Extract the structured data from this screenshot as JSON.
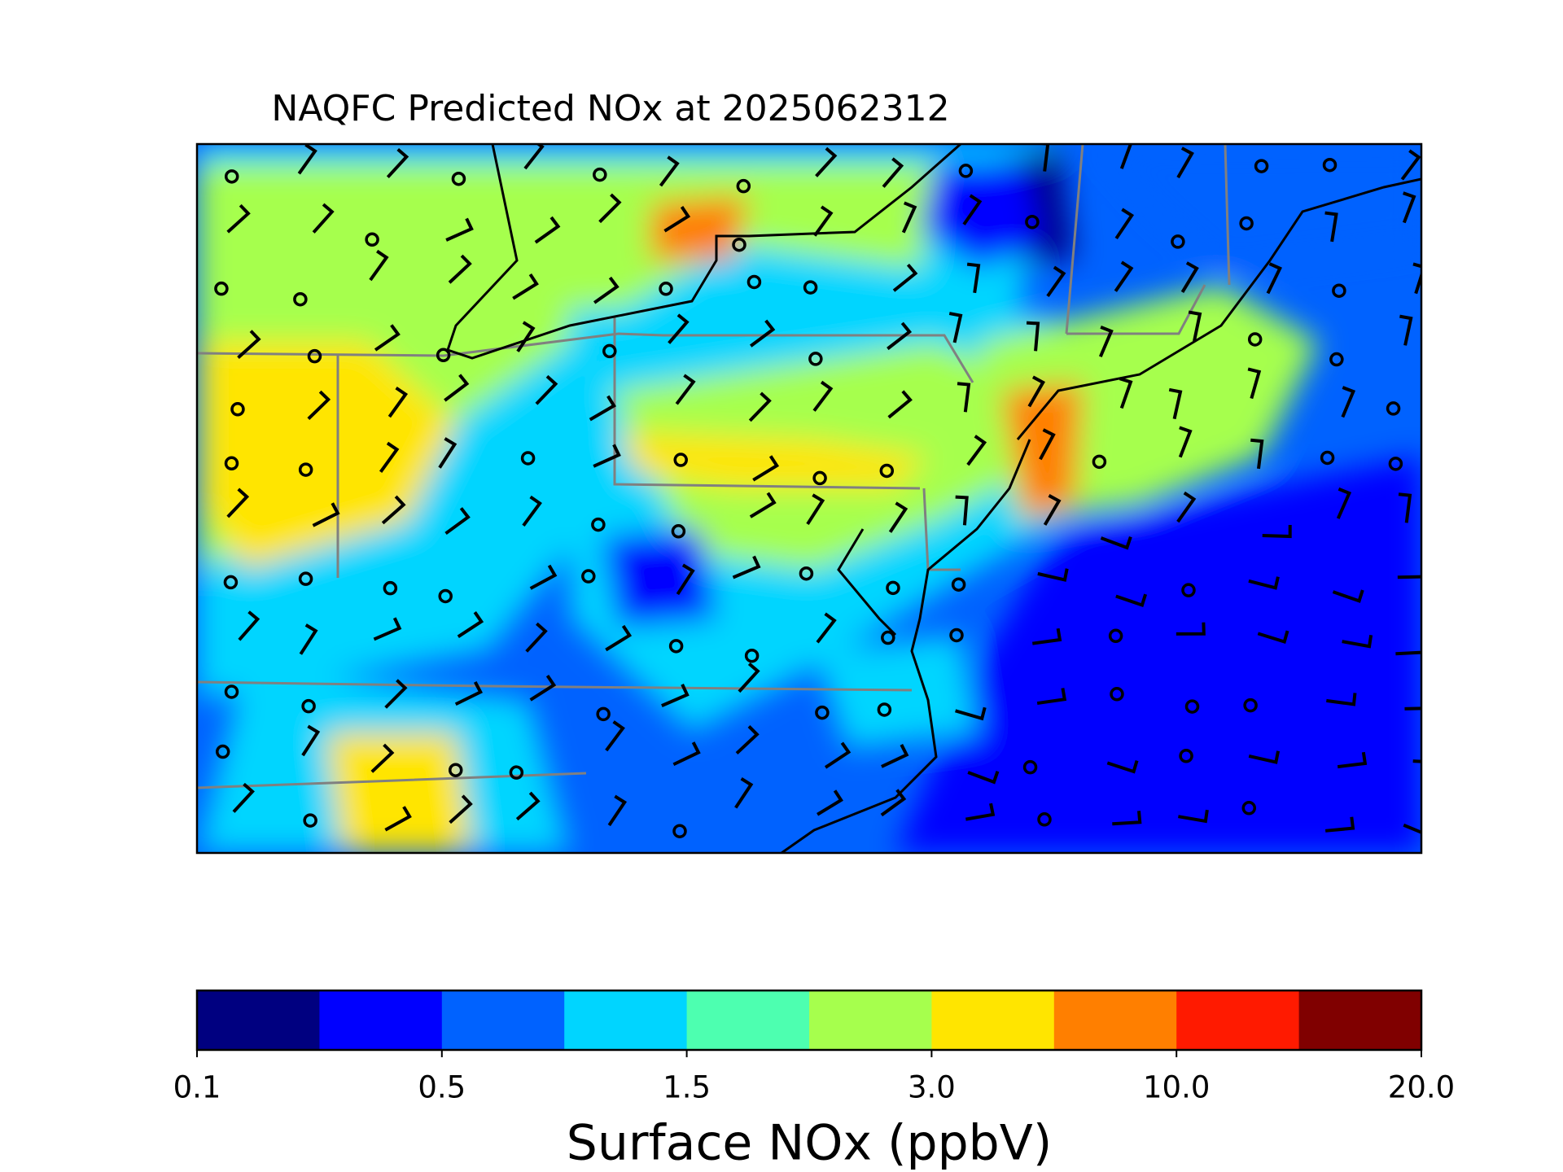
{
  "chart_data": {
    "type": "map",
    "title": "NAQFC Predicted NOx at 2025062312",
    "colorbar": {
      "label": "Surface NOx (ppbV)",
      "colors": [
        "#000080",
        "#0000ff",
        "#0062ff",
        "#00d5ff",
        "#4dffb0",
        "#a6ff4d",
        "#ffe500",
        "#ff7f00",
        "#ff1a00",
        "#800000"
      ],
      "ticks": [
        0.1,
        0.5,
        1.5,
        {
          "value": 3,
          "label": "3.0"
        },
        {
          "value": 10,
          "label": "10.0"
        },
        {
          "value": 20,
          "label": "20.0"
        }
      ]
    }
  }
}
